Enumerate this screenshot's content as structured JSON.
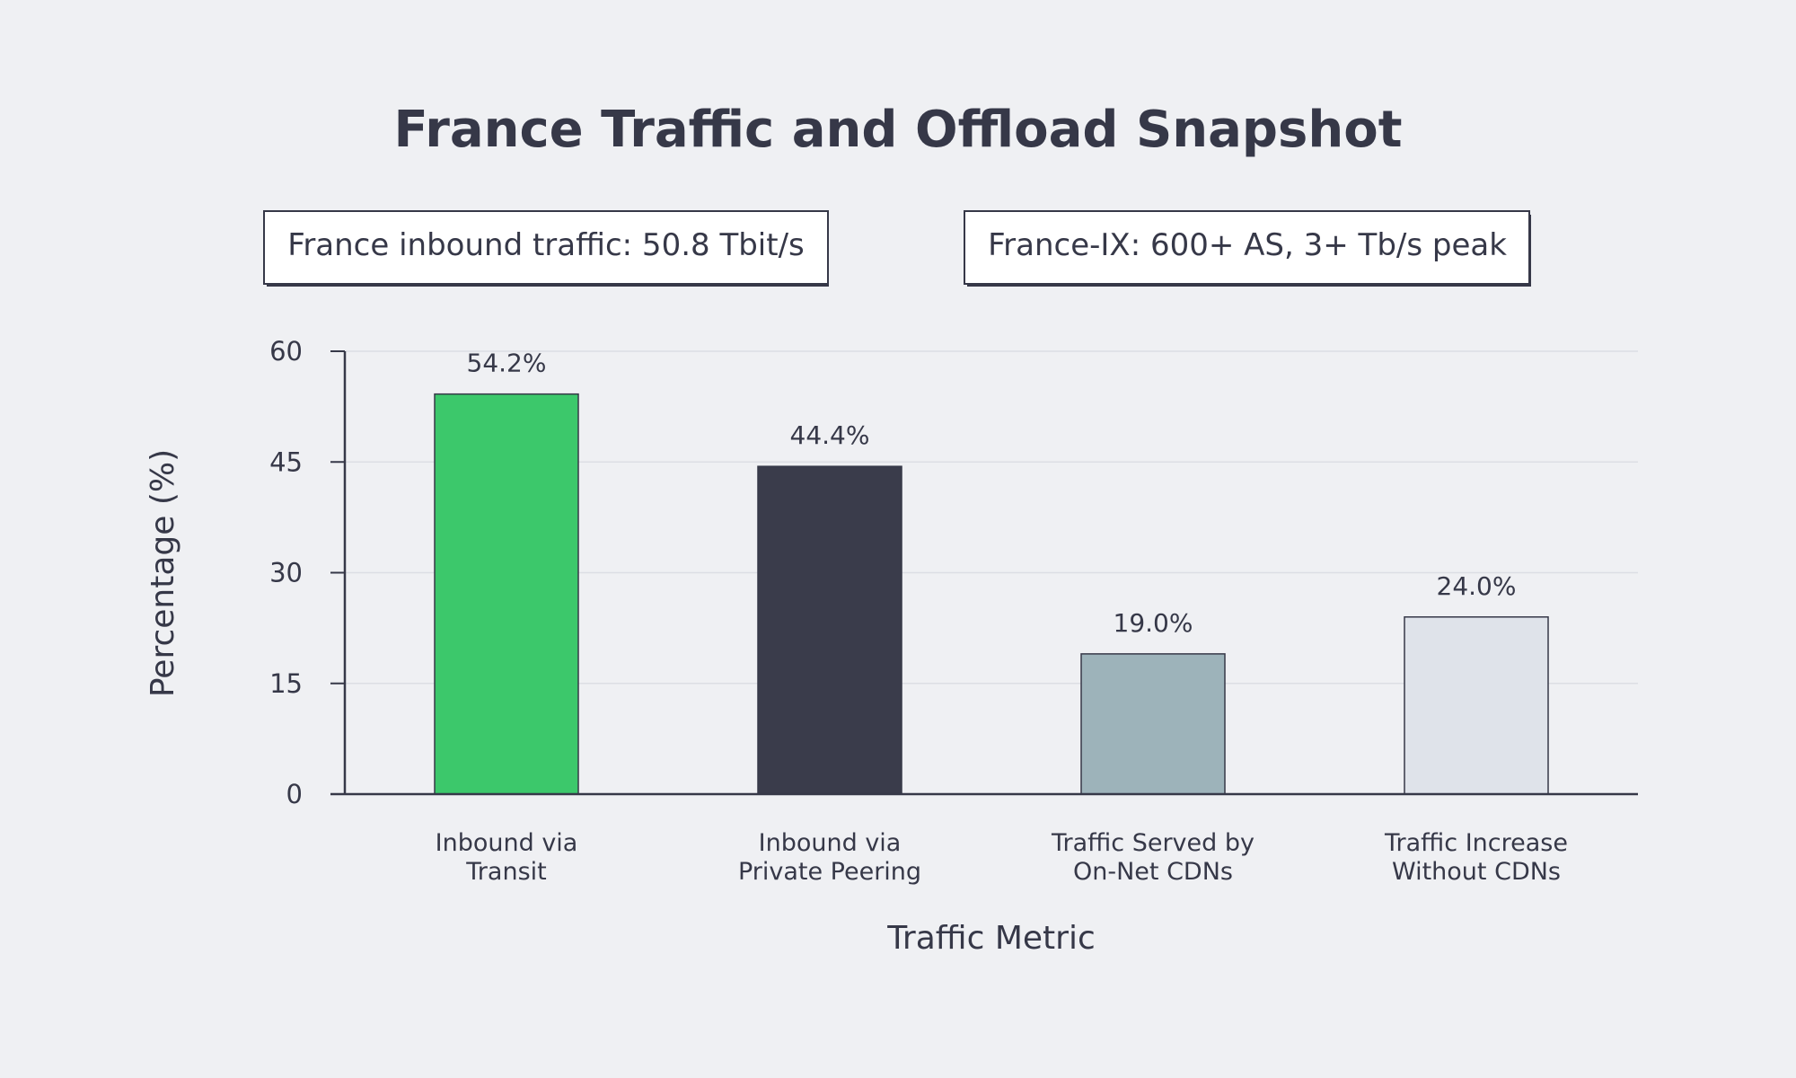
{
  "chart_data": {
    "type": "bar",
    "title": "France Traffic and Offload Snapshot",
    "annotations": [
      "France inbound traffic: 50.8 Tbit/s",
      "France-IX: 600+ AS, 3+ Tb/s peak"
    ],
    "categories": [
      [
        "Inbound via",
        "Transit"
      ],
      [
        "Inbound via",
        "Private Peering"
      ],
      [
        "Traffic Served by",
        "On-Net CDNs"
      ],
      [
        "Traffic Increase",
        "Without CDNs"
      ]
    ],
    "values": [
      54.2,
      44.4,
      19.0,
      24.0
    ],
    "value_labels": [
      "54.2%",
      "44.4%",
      "19.0%",
      "24.0%"
    ],
    "colors": [
      "#3cc86b",
      "#3a3c4b",
      "#9db3ba",
      "#dfe3ea"
    ],
    "xlabel": "Traffic Metric",
    "ylabel": "Percentage (%)",
    "ylim": [
      0,
      60
    ],
    "yticks": [
      0,
      15,
      30,
      45,
      60
    ],
    "grid": true,
    "legend": "none"
  }
}
